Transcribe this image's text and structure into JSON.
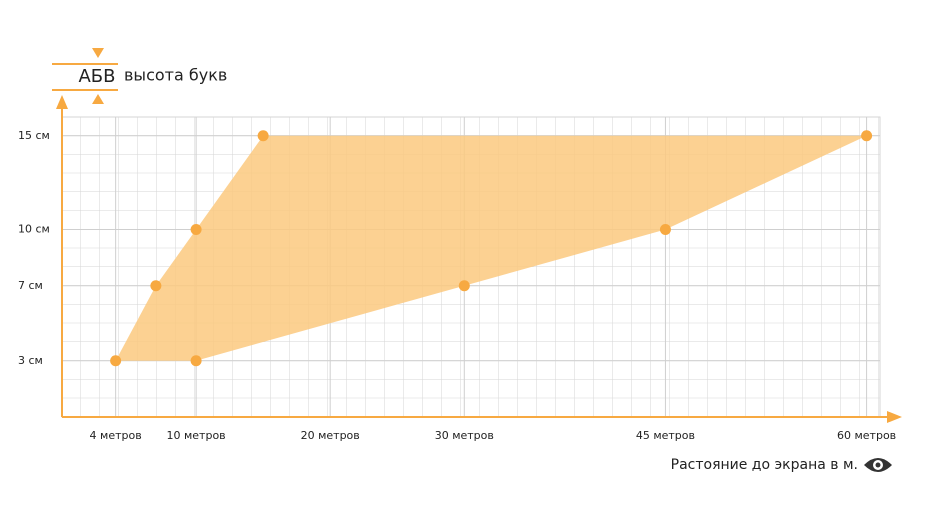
{
  "chart_data": {
    "type": "area",
    "legend_sample": "АБВ",
    "legend_label": "высота букв",
    "x_label": "Растояние до экрана в м.",
    "x": [
      4,
      7,
      10,
      15,
      60,
      45,
      30,
      10
    ],
    "values": [
      3,
      7,
      10,
      15,
      15,
      10,
      7,
      3
    ],
    "color": "#f7a941",
    "fill": "#fcc97f",
    "xlim": [
      0,
      61
    ],
    "ylim": [
      0,
      16
    ],
    "xticks": [
      {
        "value": 4,
        "label": "4 метров"
      },
      {
        "value": 10,
        "label": "10 метров"
      },
      {
        "value": 20,
        "label": "20 метров"
      },
      {
        "value": 30,
        "label": "30 метров"
      },
      {
        "value": 45,
        "label": "45 метров"
      },
      {
        "value": 60,
        "label": "60 метров"
      }
    ],
    "yticks": [
      {
        "value": 3,
        "label": "3 см"
      },
      {
        "value": 7,
        "label": "7 см"
      },
      {
        "value": 10,
        "label": "10 см"
      },
      {
        "value": 15,
        "label": "15 см"
      }
    ],
    "grid": true
  }
}
